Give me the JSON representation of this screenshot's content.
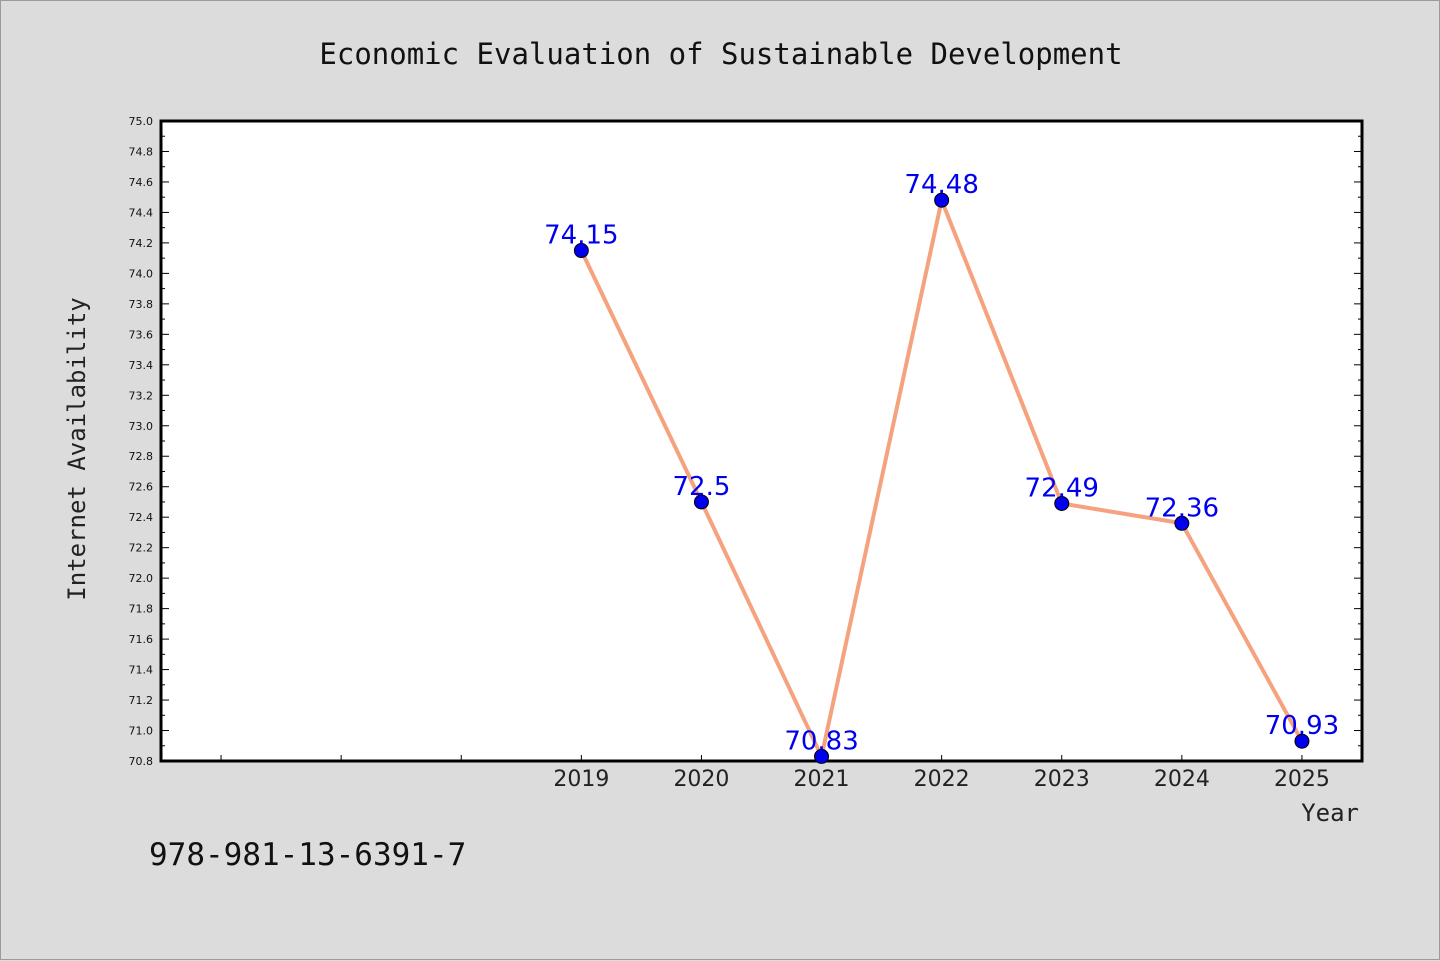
{
  "chart_data": {
    "type": "line",
    "title": "Economic Evaluation of Sustainable Development",
    "xlabel": "Year",
    "ylabel": "Internet Availability",
    "x": [
      "2019",
      "2020",
      "2021",
      "2022",
      "2023",
      "2024",
      "2025"
    ],
    "series": [
      {
        "values": [
          74.15,
          72.5,
          70.83,
          74.48,
          72.49,
          72.36,
          70.93
        ],
        "labels": [
          "74.15",
          "72.5",
          "70.83",
          "74.48",
          "72.49",
          "72.36",
          "70.93"
        ]
      }
    ],
    "ylim": [
      70.8,
      75.0
    ],
    "yticks": [
      "70.8",
      "71.0",
      "71.2",
      "71.4",
      "71.6",
      "71.8",
      "72.0",
      "72.2",
      "72.4",
      "72.6",
      "72.8",
      "73.0",
      "73.2",
      "73.4",
      "73.6",
      "73.8",
      "74.0",
      "74.2",
      "74.4",
      "74.6",
      "74.8",
      "75.0"
    ],
    "grid": false,
    "line_color": "#f5a27f",
    "marker_color": "#0000ee",
    "label_color": "#0000ee"
  },
  "footer": {
    "isbn": "978-981-13-6391-7"
  }
}
